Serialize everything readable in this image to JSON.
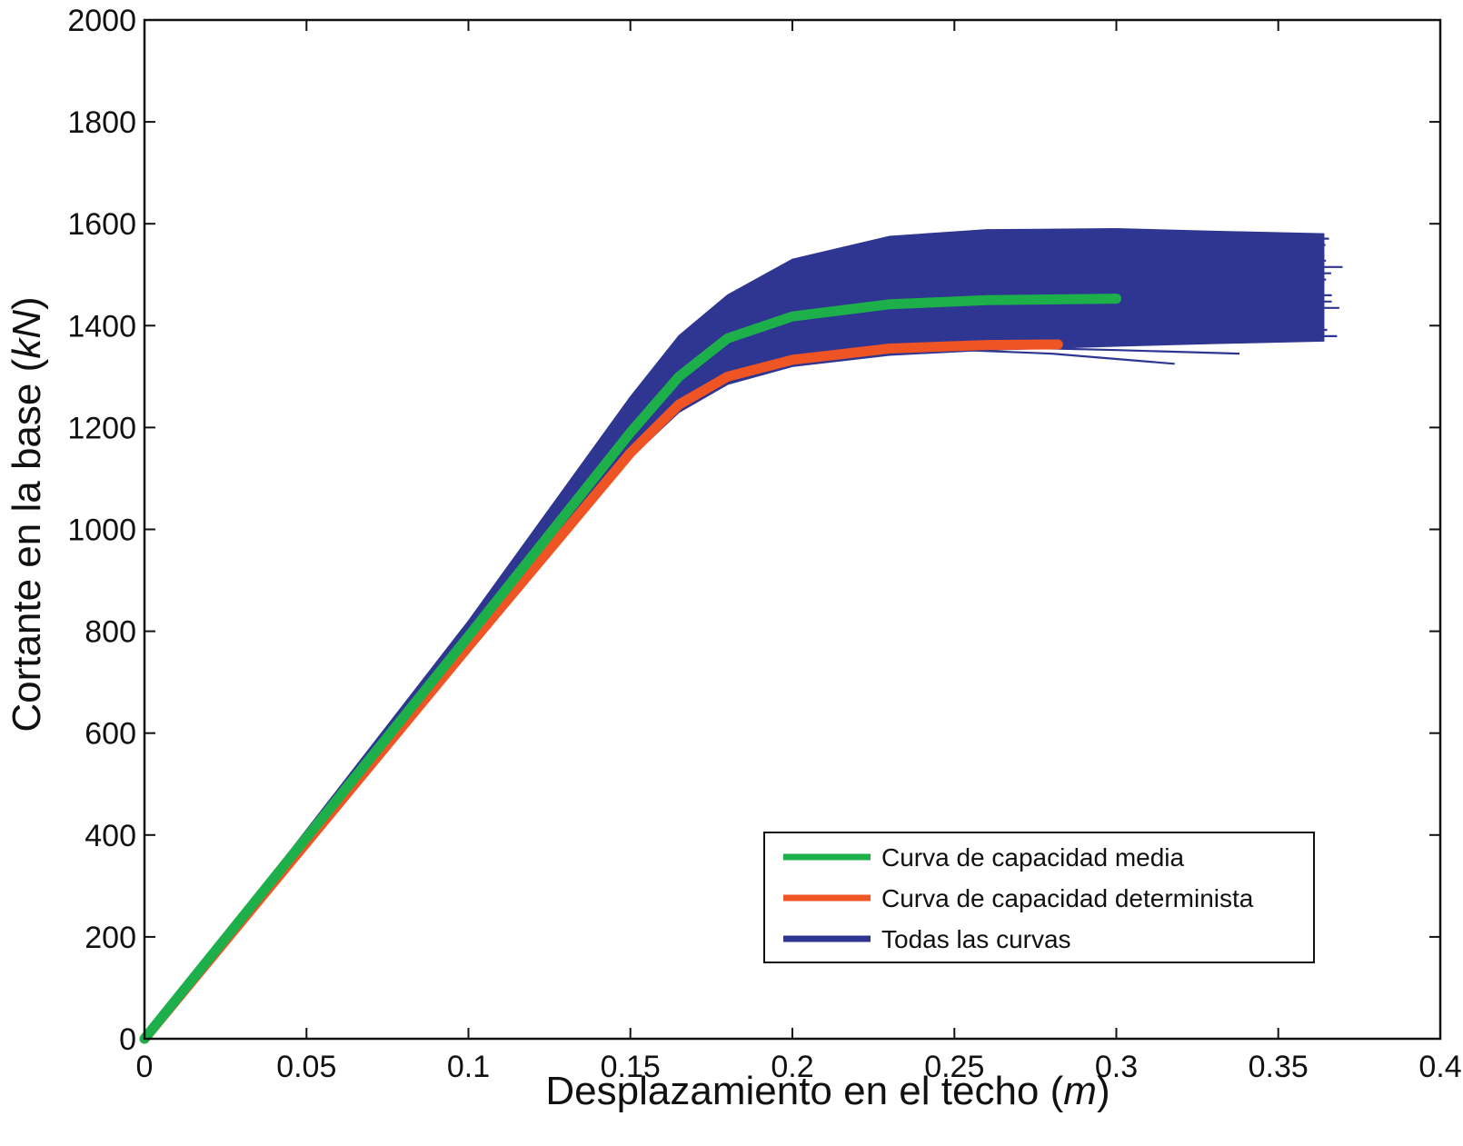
{
  "chart_data": {
    "type": "line",
    "xlabel": {
      "prefix": "Desplazamiento en el techo (",
      "unit": "m",
      "suffix": ")"
    },
    "ylabel": {
      "prefix": "Cortante en la base (",
      "unit": "kN",
      "suffix": ")"
    },
    "xlim": [
      0,
      0.4
    ],
    "ylim": [
      0,
      2000
    ],
    "xticks": [
      0,
      0.05,
      0.1,
      0.15,
      0.2,
      0.25,
      0.3,
      0.35,
      0.4
    ],
    "xtick_labels": [
      "0",
      "0.05",
      "0.1",
      "0.15",
      "0.2",
      "0.25",
      "0.3",
      "0.35",
      "0.4"
    ],
    "yticks": [
      0,
      200,
      400,
      600,
      800,
      1000,
      1200,
      1400,
      1600,
      1800,
      2000
    ],
    "ytick_labels": [
      "0",
      "200",
      "400",
      "600",
      "800",
      "1000",
      "1200",
      "1400",
      "1600",
      "1800",
      "2000"
    ],
    "grid": false,
    "legend_position": "bottom-right",
    "series": [
      {
        "name": "Curva de capacidad media",
        "color": "#1db04a",
        "points": [
          [
            0,
            0
          ],
          [
            0.05,
            395
          ],
          [
            0.1,
            790
          ],
          [
            0.15,
            1190
          ],
          [
            0.165,
            1300
          ],
          [
            0.18,
            1375
          ],
          [
            0.2,
            1418
          ],
          [
            0.23,
            1442
          ],
          [
            0.26,
            1450
          ],
          [
            0.3,
            1453
          ]
        ]
      },
      {
        "name": "Curva de capacidad determinista",
        "color": "#ef5424",
        "points": [
          [
            0,
            0
          ],
          [
            0.05,
            385
          ],
          [
            0.1,
            770
          ],
          [
            0.15,
            1150
          ],
          [
            0.165,
            1245
          ],
          [
            0.18,
            1300
          ],
          [
            0.2,
            1333
          ],
          [
            0.23,
            1355
          ],
          [
            0.26,
            1362
          ],
          [
            0.282,
            1363
          ]
        ]
      },
      {
        "name": "Todas las curvas",
        "color": "#2e3691",
        "upper": [
          [
            0,
            0
          ],
          [
            0.05,
            410
          ],
          [
            0.1,
            820
          ],
          [
            0.15,
            1260
          ],
          [
            0.165,
            1380
          ],
          [
            0.18,
            1460
          ],
          [
            0.2,
            1530
          ],
          [
            0.23,
            1575
          ],
          [
            0.26,
            1588
          ],
          [
            0.3,
            1590
          ],
          [
            0.33,
            1585
          ],
          [
            0.364,
            1580
          ]
        ],
        "lower": [
          [
            0,
            0
          ],
          [
            0.05,
            380
          ],
          [
            0.1,
            760
          ],
          [
            0.15,
            1140
          ],
          [
            0.165,
            1230
          ],
          [
            0.18,
            1285
          ],
          [
            0.2,
            1320
          ],
          [
            0.23,
            1342
          ],
          [
            0.26,
            1352
          ],
          [
            0.3,
            1360
          ],
          [
            0.33,
            1365
          ],
          [
            0.364,
            1370
          ]
        ],
        "outliers": [
          [
            [
              0.24,
              1355
            ],
            [
              0.28,
              1345
            ],
            [
              0.318,
              1325
            ]
          ],
          [
            [
              0.26,
              1358
            ],
            [
              0.3,
              1352
            ],
            [
              0.338,
              1345
            ]
          ]
        ]
      }
    ]
  }
}
